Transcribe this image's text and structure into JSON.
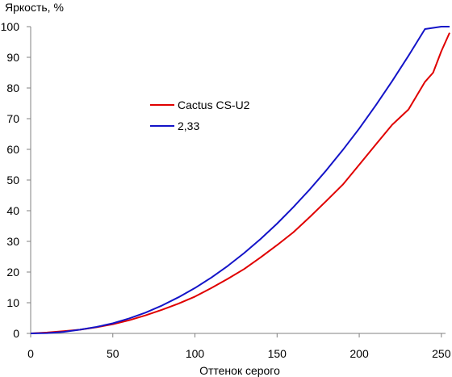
{
  "chart_data": {
    "type": "line",
    "title": "",
    "xlabel": "Оттенок серого",
    "ylabel": "Яркость, %",
    "xlim": [
      0,
      255
    ],
    "ylim": [
      0,
      100
    ],
    "x_ticks": [
      0,
      50,
      100,
      150,
      200,
      250
    ],
    "y_ticks": [
      0,
      10,
      20,
      30,
      40,
      50,
      60,
      70,
      80,
      90,
      100
    ],
    "grid": false,
    "legend_position": "center-left",
    "series": [
      {
        "name": "Cactus CS-U2",
        "color": "#e00000",
        "x": [
          0,
          10,
          20,
          30,
          40,
          50,
          60,
          70,
          80,
          90,
          100,
          110,
          120,
          130,
          140,
          150,
          160,
          170,
          180,
          190,
          200,
          210,
          220,
          230,
          240,
          245,
          250,
          255
        ],
        "y": [
          0,
          0.3,
          0.7,
          1.2,
          2.0,
          3.0,
          4.3,
          5.9,
          7.7,
          9.7,
          12.0,
          14.8,
          17.8,
          21.0,
          24.8,
          28.8,
          33.0,
          38.0,
          43.2,
          48.5,
          55.0,
          61.5,
          68.0,
          73.0,
          82.0,
          85.0,
          92.0,
          98.0
        ]
      },
      {
        "name": "2,33",
        "color": "#1414c8",
        "x": [
          0,
          10,
          20,
          30,
          40,
          50,
          60,
          70,
          80,
          90,
          100,
          110,
          120,
          130,
          140,
          150,
          160,
          170,
          180,
          190,
          200,
          210,
          220,
          230,
          240,
          250,
          255
        ],
        "y": [
          0,
          0.1,
          0.5,
          1.2,
          2.1,
          3.3,
          4.9,
          6.8,
          9.1,
          11.8,
          14.8,
          18.2,
          22.0,
          26.2,
          30.8,
          35.8,
          41.2,
          47.0,
          53.2,
          59.8,
          66.8,
          74.3,
          82.2,
          90.5,
          99.2,
          100.0,
          100.0
        ]
      }
    ]
  }
}
